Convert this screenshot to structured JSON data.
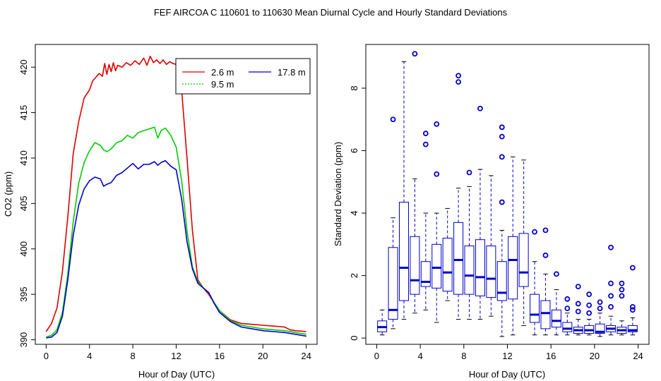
{
  "page_title": "FEF   AIRCOA C   110601 to 110630   Mean Diurnal Cycle and Hourly Standard Deviations",
  "colors": {
    "red": "#dd0000",
    "green": "#00cc00",
    "blue": "#0000cc",
    "box": "#0000cc",
    "frame": "#000000"
  },
  "chart_data": [
    {
      "type": "line",
      "title": "",
      "xlabel": "Hour of Day (UTC)",
      "ylabel": "CO2 (ppm)",
      "xlim": [
        -1,
        25
      ],
      "ylim": [
        389.5,
        422.5
      ],
      "xticks": [
        0,
        4,
        8,
        12,
        16,
        20,
        24
      ],
      "xtick_labels": [
        "0",
        "4",
        "8",
        "12",
        "16",
        "20",
        "24"
      ],
      "yticks": [
        390,
        395,
        400,
        405,
        410,
        415,
        420
      ],
      "ytick_labels": [
        "390",
        "395",
        "400",
        "405",
        "410",
        "415",
        "420"
      ],
      "legend_position": "top-right",
      "legend": [
        {
          "label": "2.6 m",
          "color_key": "red",
          "dash": "solid"
        },
        {
          "label": "17.8 m",
          "color_key": "blue",
          "dash": "solid"
        },
        {
          "label": "9.5 m",
          "color_key": "green",
          "dash": "dotted"
        }
      ],
      "series": [
        {
          "name": "2.6 m",
          "color_key": "red",
          "x": [
            0,
            0.5,
            1,
            1.5,
            2,
            2.5,
            3,
            3.5,
            4,
            4.3,
            4.6,
            4.9,
            5.2,
            5.4,
            5.6,
            5.8,
            6,
            6.2,
            6.4,
            6.6,
            7,
            7.4,
            7.8,
            8.2,
            8.6,
            9,
            9.3,
            9.6,
            9.9,
            10.2,
            10.5,
            10.8,
            11.1,
            11.4,
            11.7,
            12,
            12.5,
            13,
            13.5,
            14,
            14.5,
            15,
            15.5,
            16,
            17,
            18,
            19,
            20,
            21,
            22,
            22.5,
            23,
            24
          ],
          "y": [
            390.9,
            391.8,
            393.5,
            397.5,
            403.5,
            410.5,
            414.0,
            416.6,
            417.5,
            418.5,
            418.9,
            419.3,
            419.0,
            420.4,
            419.2,
            420.3,
            419.5,
            420.5,
            419.6,
            420.2,
            420.0,
            420.5,
            420.2,
            420.7,
            420.3,
            421.0,
            420.2,
            421.2,
            420.5,
            420.8,
            420.4,
            420.8,
            420.3,
            420.6,
            420.4,
            420.3,
            417.5,
            410.0,
            402.0,
            396.6,
            395.7,
            395.0,
            394.1,
            393.2,
            392.2,
            391.8,
            391.7,
            391.6,
            391.5,
            391.4,
            391.1,
            391.0,
            390.9
          ]
        },
        {
          "name": "9.5 m",
          "color_key": "green",
          "x": [
            0,
            0.5,
            1,
            1.5,
            2,
            2.5,
            3,
            3.5,
            4,
            4.5,
            5,
            5.3,
            5.6,
            6,
            6.5,
            7,
            7.5,
            8,
            8.5,
            9,
            9.5,
            10,
            10.3,
            10.6,
            11,
            11.5,
            12,
            12.5,
            13,
            13.5,
            14,
            14.5,
            15,
            15.5,
            16,
            17,
            18,
            19,
            20,
            21,
            22,
            23,
            24
          ],
          "y": [
            390.3,
            390.5,
            391.1,
            393.0,
            397.2,
            403.0,
            407.2,
            409.5,
            410.8,
            411.7,
            411.4,
            410.9,
            410.7,
            411.0,
            411.7,
            411.9,
            412.5,
            412.2,
            412.8,
            413.0,
            413.2,
            413.4,
            412.2,
            413.0,
            413.3,
            412.5,
            411.2,
            407.5,
            402.0,
            398.0,
            396.4,
            395.7,
            395.2,
            394.1,
            393.2,
            392.1,
            391.6,
            391.4,
            391.2,
            391.1,
            391.0,
            390.8,
            390.6
          ]
        },
        {
          "name": "17.8 m",
          "color_key": "blue",
          "x": [
            0,
            0.5,
            1,
            1.5,
            2,
            2.5,
            3,
            3.5,
            4,
            4.5,
            5,
            5.3,
            5.6,
            6,
            6.5,
            7,
            7.5,
            8,
            8.5,
            9,
            9.5,
            10,
            10.3,
            10.6,
            11,
            11.5,
            12,
            12.5,
            13,
            13.5,
            14,
            14.5,
            15,
            15.5,
            16,
            17,
            18,
            19,
            20,
            21,
            22,
            23,
            24
          ],
          "y": [
            390.2,
            390.3,
            390.8,
            392.6,
            396.6,
            401.5,
            404.8,
            406.6,
            407.5,
            407.9,
            407.7,
            406.9,
            407.1,
            407.3,
            408.1,
            408.4,
            408.9,
            409.4,
            408.8,
            409.3,
            409.3,
            409.6,
            409.2,
            409.5,
            409.7,
            409.1,
            408.7,
            405.5,
            400.8,
            397.8,
            396.2,
            395.7,
            395.2,
            394.0,
            393.0,
            392.0,
            391.4,
            391.2,
            391.0,
            390.9,
            390.8,
            390.6,
            390.4
          ]
        }
      ]
    },
    {
      "type": "box",
      "title": "",
      "xlabel": "Hour of Day (UTC)",
      "ylabel": "Standard Deviation (ppm)",
      "xlim": [
        -1,
        25
      ],
      "ylim": [
        -0.2,
        9.4
      ],
      "xticks": [
        0,
        4,
        8,
        12,
        16,
        20,
        24
      ],
      "xtick_labels": [
        "0",
        "4",
        "8",
        "12",
        "16",
        "20",
        "24"
      ],
      "yticks": [
        0,
        2,
        4,
        6,
        8
      ],
      "ytick_labels": [
        "0",
        "2",
        "4",
        "6",
        "8"
      ],
      "boxes": [
        {
          "x": 0.5,
          "wlo": 0.1,
          "q1": 0.2,
          "med": 0.35,
          "q3": 0.55,
          "whi": 0.9,
          "outliers": []
        },
        {
          "x": 1.5,
          "wlo": 0.3,
          "q1": 0.6,
          "med": 0.9,
          "q3": 2.9,
          "whi": 3.85,
          "outliers": [
            7.0
          ]
        },
        {
          "x": 2.5,
          "wlo": 0.6,
          "q1": 1.2,
          "med": 2.25,
          "q3": 4.35,
          "whi": 8.85,
          "outliers": []
        },
        {
          "x": 3.5,
          "wlo": 0.8,
          "q1": 1.4,
          "med": 1.85,
          "q3": 3.25,
          "whi": 5.1,
          "outliers": [
            9.1
          ]
        },
        {
          "x": 4.5,
          "wlo": 0.9,
          "q1": 1.65,
          "med": 1.8,
          "q3": 2.45,
          "whi": 4.0,
          "outliers": [
            6.2,
            6.55
          ]
        },
        {
          "x": 5.5,
          "wlo": 0.5,
          "q1": 1.6,
          "med": 2.25,
          "q3": 3.0,
          "whi": 4.0,
          "outliers": [
            5.25,
            6.85
          ]
        },
        {
          "x": 6.5,
          "wlo": 1.2,
          "q1": 1.5,
          "med": 2.1,
          "q3": 3.2,
          "whi": 4.15,
          "outliers": []
        },
        {
          "x": 7.5,
          "wlo": 0.6,
          "q1": 1.4,
          "med": 2.5,
          "q3": 3.7,
          "whi": 4.8,
          "outliers": [
            8.2,
            8.4
          ]
        },
        {
          "x": 8.5,
          "wlo": 0.6,
          "q1": 1.4,
          "med": 2.0,
          "q3": 2.95,
          "whi": 4.85,
          "outliers": [
            5.3
          ]
        },
        {
          "x": 9.5,
          "wlo": 0.6,
          "q1": 1.35,
          "med": 1.95,
          "q3": 3.15,
          "whi": 5.4,
          "outliers": [
            7.35
          ]
        },
        {
          "x": 10.5,
          "wlo": 0.7,
          "q1": 1.3,
          "med": 1.9,
          "q3": 2.95,
          "whi": 5.2,
          "outliers": []
        },
        {
          "x": 11.5,
          "wlo": 0.05,
          "q1": 1.2,
          "med": 1.45,
          "q3": 2.45,
          "whi": 3.45,
          "outliers": [
            4.35,
            5.8,
            6.45,
            6.75
          ]
        },
        {
          "x": 12.5,
          "wlo": 0.1,
          "q1": 1.25,
          "med": 2.5,
          "q3": 3.25,
          "whi": 5.8,
          "outliers": []
        },
        {
          "x": 13.5,
          "wlo": 0.4,
          "q1": 1.65,
          "med": 2.1,
          "q3": 3.35,
          "whi": 5.7,
          "outliers": []
        },
        {
          "x": 14.5,
          "wlo": 0.1,
          "q1": 0.5,
          "med": 0.75,
          "q3": 1.4,
          "whi": 2.45,
          "outliers": [
            3.4
          ]
        },
        {
          "x": 15.5,
          "wlo": 0.1,
          "q1": 0.3,
          "med": 0.8,
          "q3": 1.2,
          "whi": 2.05,
          "outliers": [
            2.65,
            3.45
          ]
        },
        {
          "x": 16.5,
          "wlo": 0.1,
          "q1": 0.35,
          "med": 0.55,
          "q3": 0.9,
          "whi": 1.55,
          "outliers": [
            2.05
          ]
        },
        {
          "x": 17.5,
          "wlo": 0.1,
          "q1": 0.2,
          "med": 0.3,
          "q3": 0.5,
          "whi": 0.8,
          "outliers": [
            0.95,
            1.25
          ]
        },
        {
          "x": 18.5,
          "wlo": 0.1,
          "q1": 0.15,
          "med": 0.25,
          "q3": 0.35,
          "whi": 0.6,
          "outliers": [
            0.85,
            1.1,
            1.65
          ]
        },
        {
          "x": 19.5,
          "wlo": 0.1,
          "q1": 0.15,
          "med": 0.25,
          "q3": 0.4,
          "whi": 0.6,
          "outliers": [
            0.8,
            1.05,
            1.4
          ]
        },
        {
          "x": 20.5,
          "wlo": 0.05,
          "q1": 0.15,
          "med": 0.2,
          "q3": 0.45,
          "whi": 0.8,
          "outliers": [
            0.95,
            1.15
          ]
        },
        {
          "x": 21.5,
          "wlo": 0.1,
          "q1": 0.2,
          "med": 0.3,
          "q3": 0.4,
          "whi": 0.7,
          "outliers": [
            1.0,
            1.35,
            1.75,
            2.9
          ]
        },
        {
          "x": 22.5,
          "wlo": 0.1,
          "q1": 0.15,
          "med": 0.25,
          "q3": 0.35,
          "whi": 0.55,
          "outliers": [
            1.35,
            1.55,
            1.75
          ]
        },
        {
          "x": 23.5,
          "wlo": 0.1,
          "q1": 0.2,
          "med": 0.25,
          "q3": 0.4,
          "whi": 0.65,
          "outliers": [
            0.9,
            1.0,
            2.25
          ]
        }
      ]
    }
  ]
}
